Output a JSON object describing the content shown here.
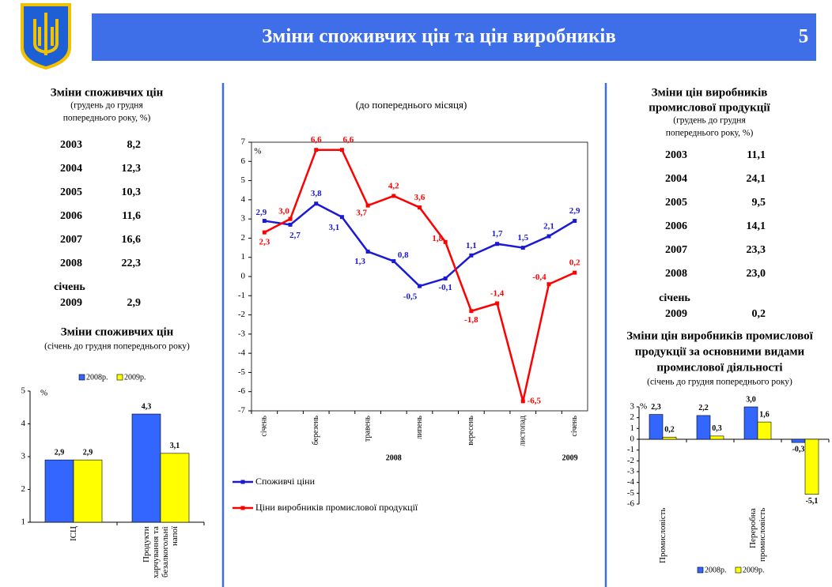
{
  "header": {
    "title": "Зміни споживчих цін та цін виробників",
    "page": "5"
  },
  "left_table": {
    "title": [
      "Зміни споживчих цін"
    ],
    "subtitle": [
      "(грудень до грудня",
      "попереднього року, %)"
    ],
    "rows": [
      [
        "2003",
        "8,2"
      ],
      [
        "2004",
        "12,3"
      ],
      [
        "2005",
        "10,3"
      ],
      [
        "2006",
        "11,6"
      ],
      [
        "2007",
        "16,6"
      ],
      [
        "2008",
        "22,3"
      ]
    ],
    "extra": {
      "label": "січень",
      "row": [
        "2009",
        "2,9"
      ]
    }
  },
  "right_table": {
    "title": [
      "Зміни цін виробників",
      "промислової продукції"
    ],
    "subtitle": [
      "(грудень до грудня",
      "попереднього року, %)"
    ],
    "rows": [
      [
        "2003",
        "11,1"
      ],
      [
        "2004",
        "24,1"
      ],
      [
        "2005",
        "9,5"
      ],
      [
        "2006",
        "14,1"
      ],
      [
        "2007",
        "23,3"
      ],
      [
        "2008",
        "23,0"
      ]
    ],
    "extra": {
      "label": "січень",
      "row": [
        "2009",
        "0,2"
      ]
    }
  },
  "chart_data": [
    {
      "type": "line",
      "subtitle": "(до попереднього місяця)",
      "y_label": "%",
      "categories": [
        "січень",
        null,
        "березень",
        null,
        "травень",
        null,
        "липень",
        null,
        "вересень",
        null,
        "листопад",
        null,
        "січень"
      ],
      "year_labels": [
        "2008",
        "2009"
      ],
      "ylim": [
        -7,
        7
      ],
      "yticks": [
        -7,
        -6,
        -5,
        -4,
        -3,
        -2,
        -1,
        0,
        1,
        2,
        3,
        4,
        5,
        6,
        7
      ],
      "legend": "bottom",
      "series": [
        {
          "name": "Споживчі ціни",
          "color": "#1a1ad6",
          "values": [
            2.9,
            2.7,
            3.8,
            3.1,
            1.3,
            0.8,
            -0.5,
            -0.1,
            1.1,
            1.7,
            1.5,
            2.1,
            2.9
          ],
          "value_labels": [
            "2,9",
            "2,7",
            "3,8",
            "3,1",
            "1,3",
            "0,8",
            "-0,5",
            "-0,1",
            "1,1",
            "1,7",
            "1,5",
            "2,1",
            "2,9"
          ]
        },
        {
          "name": "Ціни виробників промислової продукції",
          "color": "#ff0000",
          "values": [
            2.3,
            3.0,
            6.6,
            6.6,
            3.7,
            4.2,
            3.6,
            1.8,
            -1.8,
            -1.4,
            -6.5,
            -0.4,
            0.2
          ],
          "value_labels": [
            "2,3",
            "3,0",
            "6,6",
            "6,6",
            "3,7",
            "4,2",
            "3,6",
            "1,8",
            "-1,8",
            "-1,4",
            "-6,5",
            "-0,4",
            "0,2"
          ]
        }
      ]
    },
    {
      "type": "bar",
      "title": [
        "Зміни споживчих цін"
      ],
      "subtitle": "(січень до грудня попереднього року)",
      "y_label": "%",
      "categories": [
        "ІСЦ",
        "Продукти харчування та безалкогольні напої"
      ],
      "ylim": [
        1,
        5
      ],
      "yticks": [
        1,
        2,
        3,
        4,
        5
      ],
      "legend": "top",
      "series": [
        {
          "name": "2008р.",
          "color": "#3366ff",
          "values": [
            2.9,
            4.3
          ],
          "value_labels": [
            "2,9",
            "4,3"
          ]
        },
        {
          "name": "2009р.",
          "color": "#ffff00",
          "values": [
            2.9,
            3.1
          ],
          "value_labels": [
            "2,9",
            "3,1"
          ]
        }
      ]
    },
    {
      "type": "bar",
      "title": [
        "Зміни цін виробників промислової",
        "продукції за основними видами",
        "промислової діяльності"
      ],
      "subtitle": "(січень до грудня попереднього року)",
      "y_label": "%",
      "categories": [
        "Промисловість",
        null,
        "Переробна промисловість",
        null
      ],
      "ylim": [
        -6,
        3
      ],
      "yticks": [
        -6,
        -5,
        -4,
        -3,
        -2,
        -1,
        0,
        1,
        2,
        3
      ],
      "legend": "bottom",
      "series": [
        {
          "name": "2008р.",
          "color": "#3366ff",
          "values": [
            2.3,
            2.2,
            3.0,
            -0.3
          ],
          "value_labels": [
            "2,3",
            "2,2",
            "3,0",
            "-0,3"
          ]
        },
        {
          "name": "2009р.",
          "color": "#ffff00",
          "values": [
            0.2,
            0.3,
            1.6,
            -5.1
          ],
          "value_labels": [
            "0,2",
            "0,3",
            "1,6",
            "-5,1"
          ]
        }
      ]
    }
  ]
}
